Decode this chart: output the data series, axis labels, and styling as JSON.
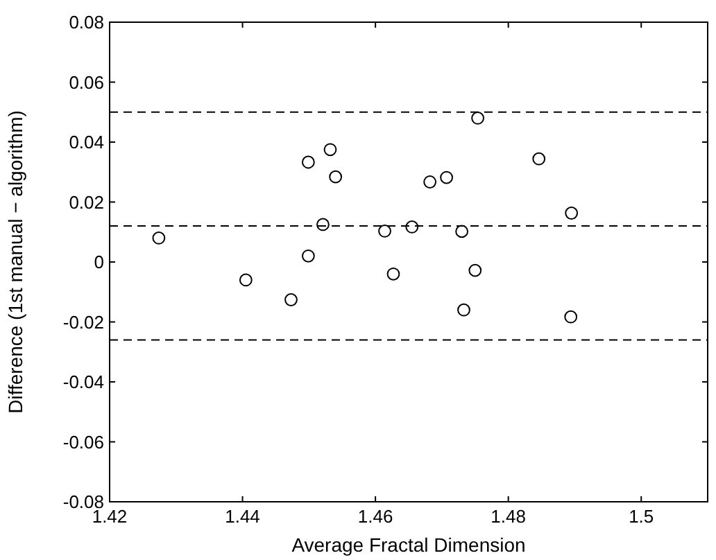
{
  "chart_data": {
    "type": "scatter",
    "xlabel": "Average Fractal Dimension",
    "ylabel": "Difference (1st manual − algorithm)",
    "x": [
      1.4274,
      1.4405,
      1.4473,
      1.4499,
      1.4499,
      1.4521,
      1.4532,
      1.454,
      1.4614,
      1.4627,
      1.4655,
      1.4682,
      1.4707,
      1.473,
      1.4733,
      1.475,
      1.4754,
      1.4846,
      1.4895,
      1.4894
    ],
    "series": [
      {
        "color": "#000000",
        "values": [
          0.008,
          -0.006,
          -0.0126,
          0.0333,
          0.002,
          0.0125,
          0.0375,
          0.0284,
          0.0103,
          -0.004,
          0.0117,
          0.0267,
          0.0282,
          0.0102,
          -0.016,
          -0.0028,
          0.048,
          0.0344,
          0.0163,
          -0.0183
        ]
      }
    ],
    "marker": "circle",
    "xlim": [
      1.42,
      1.51
    ],
    "xticks": [
      1.42,
      1.44,
      1.46,
      1.48,
      1.5
    ],
    "ylim": [
      -0.08,
      0.08
    ],
    "yticks": [
      -0.08,
      -0.06,
      -0.04,
      -0.02,
      0,
      0.02,
      0.04,
      0.06,
      0.08
    ],
    "ref_lines": [
      {
        "axis": "y",
        "value": 0.05,
        "line_style": "dashed"
      },
      {
        "axis": "y",
        "value": 0.012,
        "line_style": "dashed"
      },
      {
        "axis": "y",
        "value": -0.026,
        "line_style": "dashed"
      }
    ],
    "grid": false
  }
}
